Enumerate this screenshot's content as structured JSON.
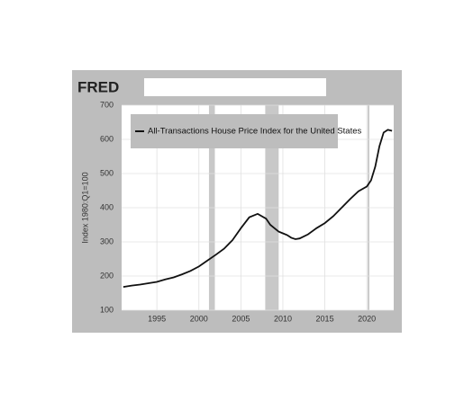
{
  "chart_data": {
    "type": "line",
    "logo": "FRED",
    "y_label": "Index 1980:Q1=100",
    "x": [
      1991,
      1992,
      1993,
      1994,
      1995,
      1996,
      1997,
      1998,
      1999,
      2000,
      2001,
      2002,
      2003,
      2004,
      2005,
      2006,
      2007,
      2008,
      2008.5,
      2009,
      2009.5,
      2010,
      2010.5,
      2011,
      2011.5,
      2012,
      2013,
      2014,
      2015,
      2016,
      2017,
      2018,
      2019,
      2020,
      2020.5,
      2021,
      2021.5,
      2022,
      2022.5,
      2023
    ],
    "series": [
      {
        "name": "All-Transactions House Price Index for the United States",
        "color": "#111111",
        "values": [
          168,
          172,
          175,
          179,
          183,
          190,
          196,
          205,
          215,
          228,
          245,
          262,
          280,
          305,
          340,
          372,
          382,
          368,
          350,
          340,
          330,
          325,
          320,
          312,
          308,
          310,
          322,
          340,
          355,
          375,
          400,
          425,
          448,
          462,
          480,
          520,
          580,
          620,
          628,
          625
        ]
      }
    ],
    "recessions": [
      [
        2001.2,
        2001.9
      ],
      [
        2007.9,
        2009.5
      ],
      [
        2020.1,
        2020.3
      ]
    ],
    "xlim": [
      1990.8,
      2023.2
    ],
    "ylim": [
      100,
      700
    ],
    "xticks": [
      1995,
      2000,
      2005,
      2010,
      2015,
      2020
    ],
    "yticks": [
      100,
      200,
      300,
      400,
      500,
      600,
      700
    ],
    "grid": true
  }
}
